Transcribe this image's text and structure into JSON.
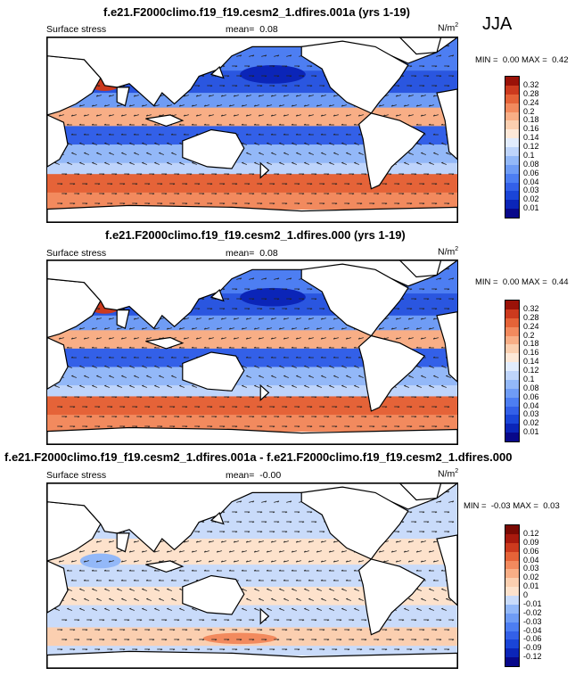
{
  "season": "JJA",
  "panels": [
    {
      "title": "f.e21.F2000climo.f19_f19.cesm2_1.dfires.001a (yrs 1-19)",
      "variable": "Surface stress",
      "mean_label": "mean=",
      "mean_value": "0.08",
      "units": "N/m",
      "units_sup": "2",
      "min_label": "MIN =",
      "min_value": "0.00",
      "max_label": "MAX =",
      "max_value": "0.42"
    },
    {
      "title": "f.e21.F2000climo.f19_f19.cesm2_1.dfires.000 (yrs 1-19)",
      "variable": "Surface stress",
      "mean_label": "mean=",
      "mean_value": "0.08",
      "units": "N/m",
      "units_sup": "2",
      "min_label": "MIN =",
      "min_value": "0.00",
      "max_label": "MAX =",
      "max_value": "0.44"
    },
    {
      "title": "f.e21.F2000climo.f19_f19.cesm2_1.dfires.001a - f.e21.F2000climo.f19_f19.cesm2_1.dfires.000",
      "variable": "Surface stress",
      "mean_label": "mean=",
      "mean_value": "-0.00",
      "units": "N/m",
      "units_sup": "2",
      "min_label": "MIN =",
      "min_value": "-0.03",
      "max_label": "MAX =",
      "max_value": "0.03"
    }
  ],
  "chart_data": [
    {
      "type": "heatmap",
      "title": "f.e21.F2000climo.f19_f19.cesm2_1.dfires.001a (yrs 1-19)",
      "colorbar_levels": [
        "0.01",
        "0.02",
        "0.03",
        "0.04",
        "0.06",
        "0.08",
        "0.1",
        "0.12",
        "0.14",
        "0.16",
        "0.18",
        "0.2",
        "0.24",
        "0.28",
        "0.32"
      ],
      "colorbar_colors": [
        "#08088a",
        "#0b25b8",
        "#1a45d8",
        "#3360e8",
        "#4d7ef2",
        "#6f9cf5",
        "#93b8f8",
        "#bed4fb",
        "#e2ecfd",
        "#fde8d8",
        "#fbcfb0",
        "#f8ae86",
        "#f28a5e",
        "#e56338",
        "#cc3a1e",
        "#9a1208"
      ],
      "min": 0.0,
      "max": 0.42,
      "mean": 0.08
    },
    {
      "type": "heatmap",
      "title": "f.e21.F2000climo.f19_f19.cesm2_1.dfires.000 (yrs 1-19)",
      "colorbar_levels": [
        "0.01",
        "0.02",
        "0.03",
        "0.04",
        "0.06",
        "0.08",
        "0.1",
        "0.12",
        "0.14",
        "0.16",
        "0.18",
        "0.2",
        "0.24",
        "0.28",
        "0.32"
      ],
      "colorbar_colors": [
        "#08088a",
        "#0b25b8",
        "#1a45d8",
        "#3360e8",
        "#4d7ef2",
        "#6f9cf5",
        "#93b8f8",
        "#bed4fb",
        "#e2ecfd",
        "#fde8d8",
        "#fbcfb0",
        "#f8ae86",
        "#f28a5e",
        "#e56338",
        "#cc3a1e",
        "#9a1208"
      ],
      "min": 0.0,
      "max": 0.44,
      "mean": 0.08
    },
    {
      "type": "heatmap",
      "title": "f.e21.F2000climo.f19_f19.cesm2_1.dfires.001a - f.e21.F2000climo.f19_f19.cesm2_1.dfires.000",
      "colorbar_levels": [
        "-0.12",
        "-0.09",
        "-0.06",
        "-0.04",
        "-0.03",
        "-0.02",
        "-0.01",
        "0",
        "0.01",
        "0.02",
        "0.03",
        "0.04",
        "0.06",
        "0.09",
        "0.12"
      ],
      "colorbar_colors": [
        "#08088a",
        "#0b25b8",
        "#1a45d8",
        "#3360e8",
        "#4d7ef2",
        "#6f9cf5",
        "#93b8f8",
        "#c9dbfa",
        "#fde2cc",
        "#fbcfb0",
        "#f8ae86",
        "#f28a5e",
        "#e56338",
        "#cc3a1e",
        "#a81a0e",
        "#7a0a04"
      ],
      "min": -0.03,
      "max": 0.03,
      "mean": -0.0
    }
  ]
}
